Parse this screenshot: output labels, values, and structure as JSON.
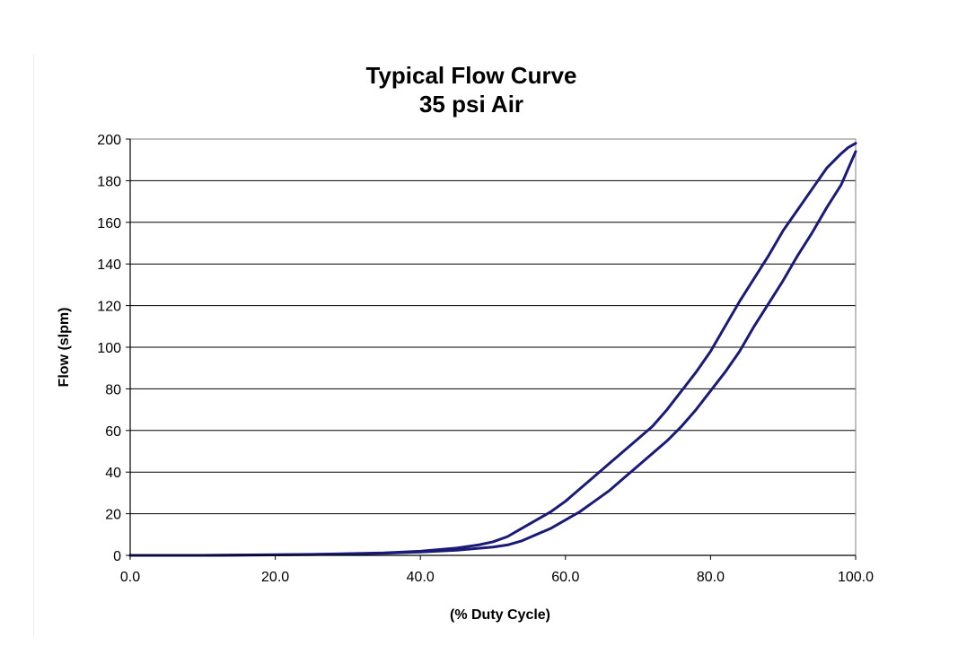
{
  "chart_data": {
    "type": "line",
    "title": "Typical Flow Curve",
    "subtitle": "35 psi Air",
    "xlabel": "(% Duty Cycle)",
    "ylabel": "Flow (slpm)",
    "xlim": [
      0,
      100
    ],
    "ylim": [
      0,
      200
    ],
    "xticks": [
      "0.0",
      "20.0",
      "40.0",
      "60.0",
      "80.0",
      "100.0"
    ],
    "yticks": [
      "0",
      "20",
      "40",
      "60",
      "80",
      "100",
      "120",
      "140",
      "160",
      "180",
      "200"
    ],
    "grid": "horizontal",
    "line_color": "#1a1a78",
    "series": [
      {
        "x": [
          0,
          10,
          20,
          25,
          30,
          35,
          40,
          45,
          48,
          50,
          52,
          54,
          56,
          58,
          60,
          62,
          64,
          66,
          68,
          70,
          72,
          74,
          76,
          78,
          80,
          82,
          84,
          86,
          88,
          90,
          92,
          94,
          96,
          98,
          99,
          100
        ],
        "values": [
          0,
          0,
          0.3,
          0.5,
          0.8,
          1.2,
          2,
          3.5,
          5,
          6.5,
          9,
          13,
          17,
          21,
          26,
          32,
          38,
          44,
          50,
          56,
          62,
          70,
          79,
          88,
          98,
          110,
          122,
          133,
          144,
          156,
          166,
          176,
          186,
          193,
          196,
          198
        ]
      },
      {
        "x": [
          0,
          10,
          20,
          25,
          30,
          35,
          40,
          45,
          50,
          52,
          54,
          56,
          58,
          60,
          62,
          64,
          66,
          68,
          70,
          72,
          74,
          76,
          78,
          80,
          82,
          84,
          86,
          88,
          90,
          92,
          94,
          96,
          98,
          99,
          100
        ],
        "values": [
          0,
          0,
          0.2,
          0.4,
          0.7,
          1,
          1.6,
          2.5,
          4,
          5,
          7,
          10,
          13,
          17,
          21,
          26,
          31,
          37,
          43,
          49,
          55,
          62,
          70,
          79,
          88,
          98,
          110,
          121,
          132,
          144,
          155,
          167,
          178,
          186,
          194
        ]
      }
    ]
  }
}
